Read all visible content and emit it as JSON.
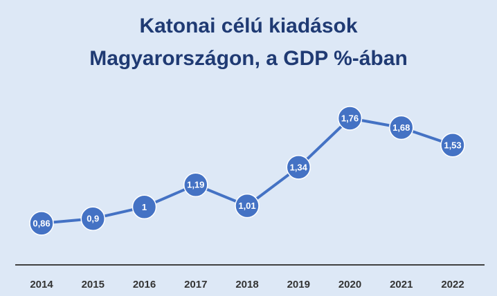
{
  "chart_data": {
    "type": "line",
    "title": "Katonai célú kiadások",
    "subtitle": "Magyarországon, a GDP %-ában",
    "xlabel": "",
    "ylabel": "",
    "categories": [
      "2014",
      "2015",
      "2016",
      "2017",
      "2018",
      "2019",
      "2020",
      "2021",
      "2022"
    ],
    "values": [
      0.86,
      0.9,
      1,
      1.19,
      1.01,
      1.34,
      1.76,
      1.68,
      1.53
    ],
    "data_labels": [
      "0,86",
      "0,9",
      "1",
      "1,19",
      "1,01",
      "1,34",
      "1,76",
      "1,68",
      "1,53"
    ],
    "ylim": [
      0,
      2
    ],
    "grid": false,
    "legend": "none",
    "colors": {
      "background": "#dde8f6",
      "line": "#4472c4",
      "marker": "#4472c4",
      "marker_stroke": "#ffffff",
      "title": "#1f3a73",
      "axis": "#404040",
      "tick_text": "#333333",
      "label_text": "#ffffff"
    }
  }
}
